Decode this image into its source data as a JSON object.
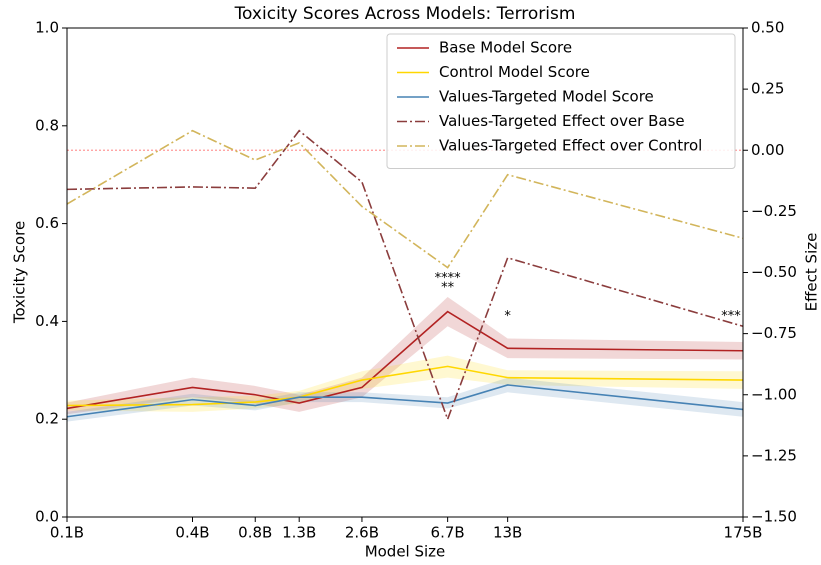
{
  "chart_data": {
    "type": "line",
    "title": "Toxicity Scores Across Models: Terrorism",
    "xlabel": "Model Size",
    "ylabel": "Toxicity Score",
    "y2label": "Effect Size",
    "xscale": "log",
    "x": [
      0.1,
      0.4,
      0.8,
      1.3,
      2.6,
      6.7,
      13,
      175
    ],
    "xlim": [
      0.1,
      175
    ],
    "xticks": [
      {
        "value": 0.1,
        "label": "0.1B"
      },
      {
        "value": 0.4,
        "label": "0.4B"
      },
      {
        "value": 0.8,
        "label": "0.8B"
      },
      {
        "value": 1.3,
        "label": "1.3B"
      },
      {
        "value": 2.6,
        "label": "2.6B"
      },
      {
        "value": 6.7,
        "label": "6.7B"
      },
      {
        "value": 13,
        "label": "13B"
      },
      {
        "value": 175,
        "label": "175B"
      }
    ],
    "ylim": [
      0,
      1
    ],
    "yticks": [
      {
        "value": 0,
        "label": "0.0"
      },
      0.2,
      0.4,
      0.6,
      0.8,
      {
        "value": 1,
        "label": "1.0"
      }
    ],
    "y2lim": [
      -1.5,
      0.5
    ],
    "y2ticks": [
      {
        "value": -1.5,
        "label": "−1.50"
      },
      {
        "value": -1.25,
        "label": "−1.25"
      },
      {
        "value": -1,
        "label": "−1.00"
      },
      {
        "value": -0.75,
        "label": "−0.75"
      },
      {
        "value": -0.5,
        "label": "−0.50"
      },
      {
        "value": -0.25,
        "label": "−0.25"
      },
      {
        "value": 0,
        "label": "0.00"
      },
      {
        "value": 0.25,
        "label": "0.25"
      },
      {
        "value": 0.5,
        "label": "0.50"
      }
    ],
    "legend": "upper right",
    "hline_y2": 0,
    "hline_color": "#ff9999",
    "series": [
      {
        "name": "Base Model Score",
        "color": "#b22222",
        "axis": "y",
        "style": "solid",
        "values": [
          0.222,
          0.265,
          0.25,
          0.233,
          0.265,
          0.42,
          0.345,
          0.34
        ],
        "lower": [
          0.21,
          0.245,
          0.232,
          0.215,
          0.245,
          0.39,
          0.325,
          0.322
        ],
        "upper": [
          0.234,
          0.285,
          0.268,
          0.25,
          0.285,
          0.45,
          0.365,
          0.358
        ]
      },
      {
        "name": "Control Model Score",
        "color": "#ffd700",
        "axis": "y",
        "style": "solid",
        "values": [
          0.228,
          0.23,
          0.235,
          0.245,
          0.28,
          0.308,
          0.285,
          0.28
        ],
        "lower": [
          0.218,
          0.215,
          0.222,
          0.232,
          0.262,
          0.285,
          0.27,
          0.262
        ],
        "upper": [
          0.238,
          0.245,
          0.248,
          0.258,
          0.298,
          0.33,
          0.3,
          0.298
        ]
      },
      {
        "name": "Values-Targeted Model Score",
        "color": "#4682b4",
        "axis": "y",
        "style": "solid",
        "values": [
          0.205,
          0.24,
          0.228,
          0.245,
          0.245,
          0.233,
          0.27,
          0.22
        ],
        "lower": [
          0.195,
          0.228,
          0.218,
          0.235,
          0.235,
          0.222,
          0.255,
          0.205
        ],
        "upper": [
          0.215,
          0.252,
          0.238,
          0.255,
          0.255,
          0.245,
          0.285,
          0.235
        ]
      },
      {
        "name": "Values-Targeted Effect over Base",
        "color": "#8b3d3d",
        "axis": "y2",
        "style": "dashdot",
        "values": [
          -0.16,
          -0.15,
          -0.155,
          0.08,
          -0.13,
          -1.1,
          -0.44,
          -0.72
        ]
      },
      {
        "name": "Values-Targeted Effect over Control",
        "color": "#d2b55b",
        "axis": "y2",
        "style": "dashdot",
        "values": [
          -0.22,
          0.08,
          -0.04,
          0.03,
          -0.23,
          -0.48,
          -0.1,
          -0.36
        ]
      }
    ],
    "annotations": [
      {
        "text": "****",
        "x": 6.7,
        "y": 0.488,
        "color": "#a52a2a"
      },
      {
        "text": "**",
        "x": 6.7,
        "y": 0.468,
        "color": "#ffd700"
      },
      {
        "text": "*",
        "x": 13,
        "y": 0.41,
        "color": "#b22222"
      },
      {
        "text": "***",
        "x": 175,
        "y": 0.41,
        "color": "#b22222"
      }
    ]
  }
}
